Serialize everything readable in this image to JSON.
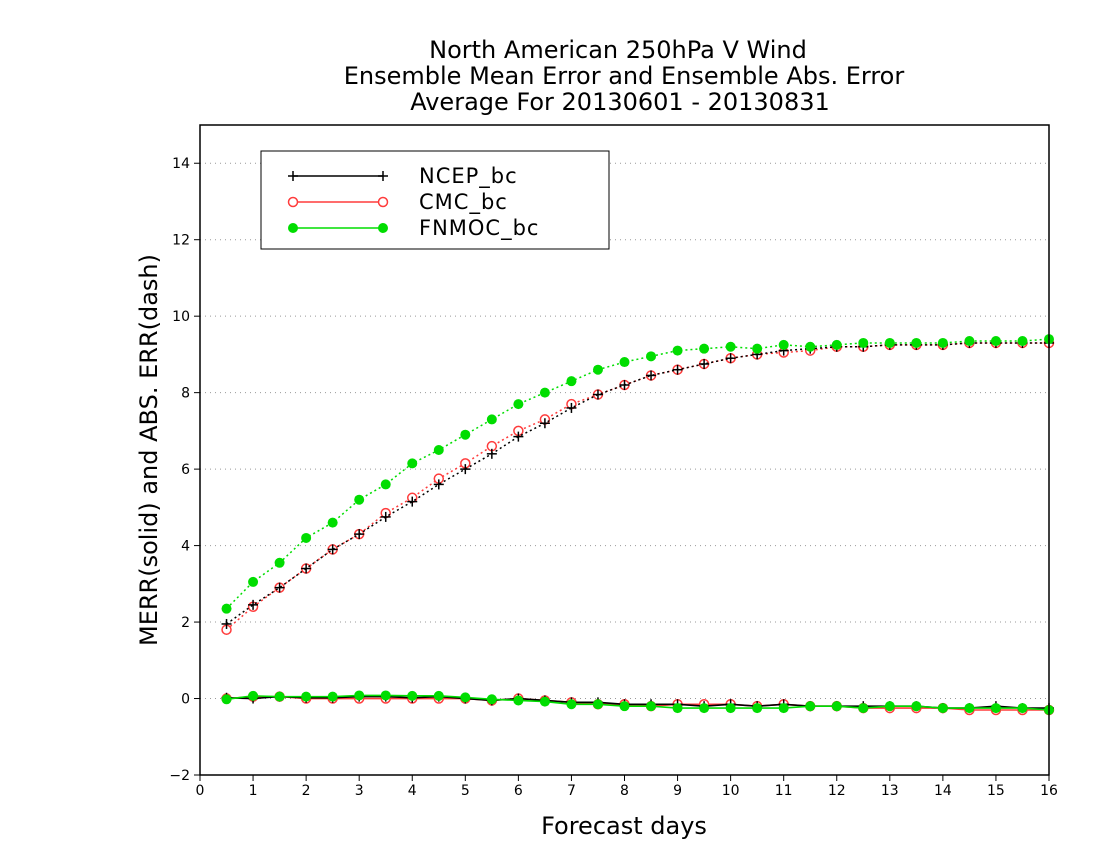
{
  "chart_data": {
    "type": "line",
    "title": [
      "North American 250hPa V Wind",
      "Ensemble Mean Error and Ensemble Abs. Error",
      "Average For 20130601 - 20130831"
    ],
    "xlabel": "Forecast days",
    "ylabel": "MERR(solid) and ABS. ERR(dash)",
    "xlim": [
      0,
      16
    ],
    "ylim": [
      -2,
      15
    ],
    "xticks": [
      0,
      1,
      2,
      3,
      4,
      5,
      6,
      7,
      8,
      9,
      10,
      11,
      12,
      13,
      14,
      15,
      16
    ],
    "yticks": [
      -2,
      0,
      2,
      4,
      6,
      8,
      10,
      12,
      14
    ],
    "grid": "horizontal dotted",
    "legend_position": "top-left",
    "x": [
      0.5,
      1,
      1.5,
      2,
      2.5,
      3,
      3.5,
      4,
      4.5,
      5,
      5.5,
      6,
      6.5,
      7,
      7.5,
      8,
      8.5,
      9,
      9.5,
      10,
      10.5,
      11,
      11.5,
      12,
      12.5,
      13,
      13.5,
      14,
      14.5,
      15,
      15.5,
      16
    ],
    "series": [
      {
        "name": "NCEP_bc",
        "color": "#000000",
        "marker": "plus",
        "abs_error": [
          1.95,
          2.45,
          2.9,
          3.4,
          3.9,
          4.3,
          4.75,
          5.15,
          5.6,
          6.0,
          6.4,
          6.85,
          7.2,
          7.6,
          7.95,
          8.2,
          8.45,
          8.6,
          8.75,
          8.9,
          9.0,
          9.1,
          9.15,
          9.2,
          9.2,
          9.25,
          9.25,
          9.25,
          9.3,
          9.3,
          9.3,
          9.3
        ],
        "mean_error": [
          0.02,
          0.0,
          0.05,
          0.02,
          0.02,
          0.05,
          0.05,
          0.02,
          0.05,
          0.0,
          -0.05,
          0.0,
          -0.05,
          -0.1,
          -0.1,
          -0.15,
          -0.15,
          -0.15,
          -0.2,
          -0.15,
          -0.2,
          -0.15,
          -0.2,
          -0.2,
          -0.2,
          -0.2,
          -0.2,
          -0.25,
          -0.25,
          -0.2,
          -0.25,
          -0.25
        ]
      },
      {
        "name": "CMC_bc",
        "color": "#ff3b3b",
        "marker": "open-circle",
        "abs_error": [
          1.8,
          2.4,
          2.9,
          3.4,
          3.9,
          4.3,
          4.85,
          5.25,
          5.75,
          6.15,
          6.6,
          7.0,
          7.3,
          7.7,
          7.95,
          8.2,
          8.45,
          8.6,
          8.75,
          8.9,
          9.0,
          9.05,
          9.1,
          9.2,
          9.2,
          9.25,
          9.25,
          9.25,
          9.3,
          9.3,
          9.3,
          9.3
        ],
        "mean_error": [
          0.0,
          0.05,
          0.05,
          0.0,
          0.0,
          0.0,
          0.0,
          0.0,
          0.0,
          0.0,
          -0.05,
          0.0,
          -0.05,
          -0.1,
          -0.15,
          -0.15,
          -0.2,
          -0.15,
          -0.15,
          -0.15,
          -0.2,
          -0.15,
          -0.2,
          -0.2,
          -0.25,
          -0.25,
          -0.25,
          -0.25,
          -0.3,
          -0.3,
          -0.3,
          -0.3
        ]
      },
      {
        "name": "FNMOC_bc",
        "color": "#00dd00",
        "marker": "filled-circle",
        "abs_error": [
          2.35,
          3.05,
          3.55,
          4.2,
          4.6,
          5.2,
          5.6,
          6.15,
          6.5,
          6.9,
          7.3,
          7.7,
          8.0,
          8.3,
          8.6,
          8.8,
          8.95,
          9.1,
          9.15,
          9.2,
          9.15,
          9.25,
          9.2,
          9.25,
          9.3,
          9.3,
          9.3,
          9.3,
          9.35,
          9.35,
          9.35,
          9.4
        ],
        "mean_error": [
          -0.02,
          0.07,
          0.05,
          0.05,
          0.05,
          0.08,
          0.08,
          0.07,
          0.07,
          0.03,
          -0.02,
          -0.05,
          -0.08,
          -0.15,
          -0.15,
          -0.2,
          -0.2,
          -0.25,
          -0.25,
          -0.25,
          -0.25,
          -0.25,
          -0.2,
          -0.2,
          -0.25,
          -0.2,
          -0.2,
          -0.25,
          -0.25,
          -0.25,
          -0.25,
          -0.3
        ]
      }
    ]
  }
}
